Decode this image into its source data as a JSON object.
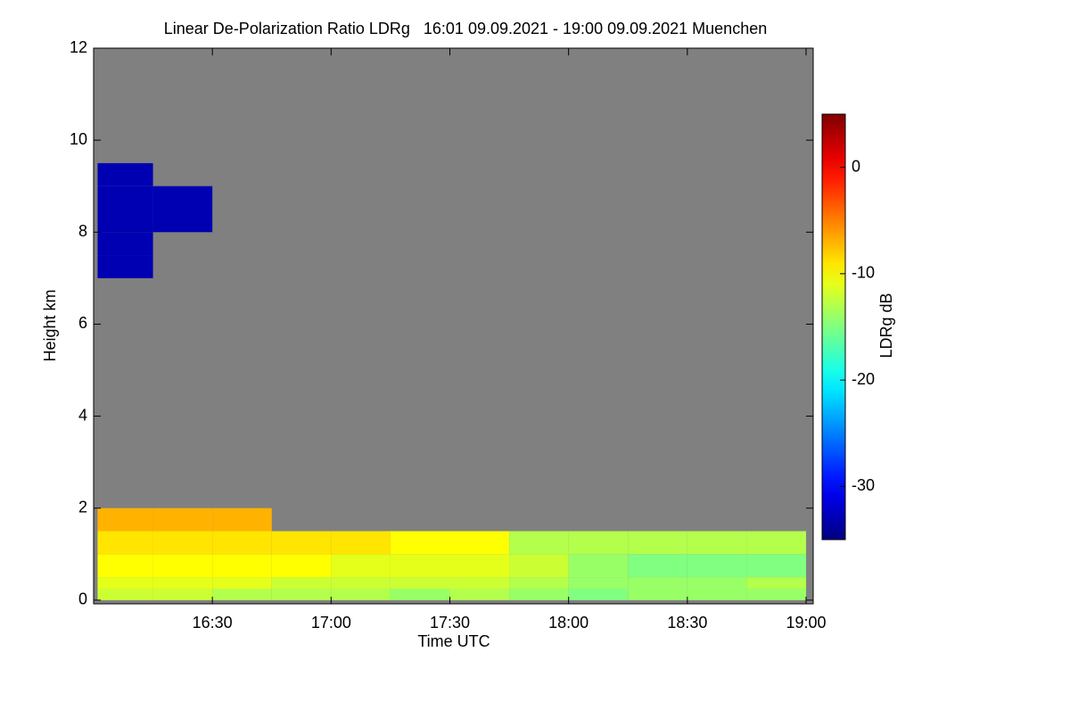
{
  "chart_data": {
    "type": "heatmap",
    "title": "Linear De-Polarization Ratio LDRg   16:01 09.09.2021 - 19:00 09.09.2021 Muenchen",
    "x_label": "Time UTC",
    "y_label": "Height km",
    "colorbar_label": "LDRg dB",
    "x_edges": [
      16.0167,
      16.25,
      16.5,
      16.75,
      17.0,
      17.25,
      17.5,
      17.75,
      18.0,
      18.25,
      18.5,
      18.75,
      19.0
    ],
    "y_edges": [
      0,
      0.25,
      0.5,
      1,
      1.5,
      2,
      7,
      7.5,
      8,
      8.5,
      9,
      9.5,
      12
    ],
    "z": [
      [
        -12,
        -12,
        -13,
        -13,
        -13,
        -14,
        -13,
        -14,
        -15,
        -14,
        -14,
        -14
      ],
      [
        -11,
        -11,
        -11,
        -12,
        -12,
        -12,
        -12,
        -13,
        -14,
        -14,
        -14,
        -13
      ],
      [
        -10,
        -10,
        -10,
        -10,
        -11,
        -11,
        -11,
        -12,
        -14,
        -15,
        -15,
        -15
      ],
      [
        -9,
        -9,
        -9,
        -9,
        -9,
        -10,
        -10,
        -13,
        -13,
        -13,
        -13,
        -13
      ],
      [
        -7,
        -7,
        -7,
        null,
        null,
        null,
        null,
        null,
        null,
        null,
        null,
        null
      ],
      [
        null,
        null,
        null,
        null,
        null,
        null,
        null,
        null,
        null,
        null,
        null,
        null
      ],
      [
        -33,
        null,
        null,
        null,
        null,
        null,
        null,
        null,
        null,
        null,
        null,
        null
      ],
      [
        -33,
        null,
        null,
        null,
        null,
        null,
        null,
        null,
        null,
        null,
        null,
        null
      ],
      [
        -33,
        -33,
        null,
        null,
        null,
        null,
        null,
        null,
        null,
        null,
        null,
        null
      ],
      [
        -33,
        -33,
        null,
        null,
        null,
        null,
        null,
        null,
        null,
        null,
        null,
        null
      ],
      [
        -33,
        null,
        null,
        null,
        null,
        null,
        null,
        null,
        null,
        null,
        null,
        null
      ],
      [
        null,
        null,
        null,
        null,
        null,
        null,
        null,
        null,
        null,
        null,
        null,
        null
      ]
    ],
    "xlim": [
      16.0,
      19.03
    ],
    "xticks": [
      {
        "value": 16.5,
        "label": "16:30"
      },
      {
        "value": 17.0,
        "label": "17:00"
      },
      {
        "value": 17.5,
        "label": "17:30"
      },
      {
        "value": 18.0,
        "label": "18:00"
      },
      {
        "value": 18.5,
        "label": "18:30"
      },
      {
        "value": 19.0,
        "label": "19:00"
      }
    ],
    "ylim": [
      -0.08,
      12
    ],
    "yticks": [
      0,
      2,
      4,
      6,
      8,
      10,
      12
    ],
    "zlim": [
      -35,
      5
    ],
    "zticks": [
      0,
      -10,
      -20,
      -30
    ],
    "background": "#808080"
  }
}
